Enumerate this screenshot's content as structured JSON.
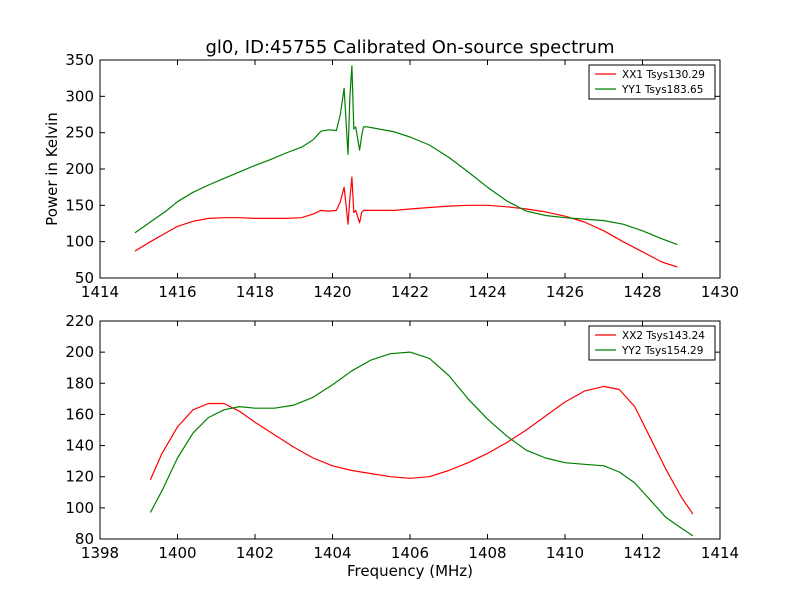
{
  "figure": {
    "title": "gl0, ID:45755 Calibrated On-source spectrum"
  },
  "colors": {
    "xx": "#ff0000",
    "yy": "#008000",
    "axes": "#000000",
    "background": "#ffffff"
  },
  "chart_data": [
    {
      "type": "line",
      "title": "gl0, ID:45755 Calibrated On-source spectrum",
      "xlabel": "",
      "ylabel": "Power in Kelvin",
      "xlim": [
        1414,
        1430
      ],
      "ylim": [
        50,
        350
      ],
      "xticks": [
        "1414",
        "1416",
        "1418",
        "1420",
        "1422",
        "1424",
        "1426",
        "1428",
        "1430"
      ],
      "yticks": [
        "50",
        "100",
        "150",
        "200",
        "250",
        "300",
        "350"
      ],
      "grid": false,
      "legend_position": "top-right",
      "series": [
        {
          "name": "XX1 Tsys130.29",
          "color": "#ff0000",
          "x": [
            1414.9,
            1415.3,
            1415.7,
            1416.0,
            1416.4,
            1416.8,
            1417.2,
            1417.6,
            1418.0,
            1418.4,
            1418.8,
            1419.2,
            1419.5,
            1419.7,
            1419.9,
            1420.1,
            1420.2,
            1420.3,
            1420.35,
            1420.4,
            1420.45,
            1420.5,
            1420.55,
            1420.6,
            1420.7,
            1420.75,
            1420.8,
            1420.9,
            1421.2,
            1421.6,
            1422.0,
            1422.5,
            1423.0,
            1423.5,
            1424.0,
            1424.5,
            1425.0,
            1425.5,
            1426.0,
            1426.5,
            1427.0,
            1427.5,
            1428.0,
            1428.5,
            1428.9
          ],
          "values": [
            87,
            100,
            112,
            121,
            128,
            132,
            133,
            133,
            132,
            132,
            132,
            133,
            138,
            143,
            142,
            143,
            155,
            175,
            150,
            124,
            160,
            189,
            140,
            143,
            126,
            140,
            143,
            143,
            143,
            143,
            145,
            147,
            149,
            150,
            150,
            148,
            145,
            141,
            135,
            127,
            115,
            100,
            86,
            72,
            65
          ]
        },
        {
          "name": "YY1 Tsys183.65",
          "color": "#008000",
          "x": [
            1414.9,
            1415.3,
            1415.7,
            1416.0,
            1416.4,
            1416.8,
            1417.2,
            1417.6,
            1418.0,
            1418.4,
            1418.8,
            1419.2,
            1419.5,
            1419.7,
            1419.9,
            1420.1,
            1420.2,
            1420.3,
            1420.35,
            1420.4,
            1420.45,
            1420.5,
            1420.55,
            1420.6,
            1420.7,
            1420.75,
            1420.8,
            1420.9,
            1421.2,
            1421.6,
            1422.0,
            1422.5,
            1423.0,
            1423.5,
            1424.0,
            1424.5,
            1425.0,
            1425.5,
            1426.0,
            1426.5,
            1427.0,
            1427.5,
            1428.0,
            1428.5,
            1428.9
          ],
          "values": [
            112,
            127,
            142,
            155,
            168,
            178,
            187,
            196,
            205,
            213,
            222,
            230,
            240,
            252,
            254,
            253,
            275,
            311,
            265,
            220,
            300,
            342,
            255,
            258,
            226,
            245,
            258,
            258,
            255,
            251,
            244,
            233,
            216,
            196,
            175,
            156,
            142,
            136,
            133,
            131,
            129,
            124,
            115,
            104,
            96
          ]
        }
      ]
    },
    {
      "type": "line",
      "title": "",
      "xlabel": "Frequency (MHz)",
      "ylabel": "",
      "xlim": [
        1398,
        1414
      ],
      "ylim": [
        80,
        220
      ],
      "xticks": [
        "1398",
        "1400",
        "1402",
        "1404",
        "1406",
        "1408",
        "1410",
        "1412",
        "1414"
      ],
      "yticks": [
        "80",
        "100",
        "120",
        "140",
        "160",
        "180",
        "200",
        "220"
      ],
      "grid": false,
      "legend_position": "top-right",
      "series": [
        {
          "name": "XX2 Tsys143.24",
          "color": "#ff0000",
          "x": [
            1399.3,
            1399.6,
            1400.0,
            1400.4,
            1400.8,
            1401.2,
            1401.6,
            1402.0,
            1402.5,
            1403.0,
            1403.5,
            1404.0,
            1404.5,
            1405.0,
            1405.5,
            1406.0,
            1406.5,
            1407.0,
            1407.5,
            1408.0,
            1408.5,
            1409.0,
            1409.5,
            1410.0,
            1410.5,
            1411.0,
            1411.4,
            1411.8,
            1412.2,
            1412.6,
            1413.0,
            1413.3
          ],
          "values": [
            118,
            135,
            152,
            163,
            167,
            167,
            162,
            155,
            147,
            139,
            132,
            127,
            124,
            122,
            120,
            119,
            120,
            124,
            129,
            135,
            142,
            150,
            159,
            168,
            175,
            178,
            176,
            165,
            145,
            125,
            107,
            96
          ]
        },
        {
          "name": "YY2 Tsys154.29",
          "color": "#008000",
          "x": [
            1399.3,
            1399.6,
            1400.0,
            1400.4,
            1400.8,
            1401.2,
            1401.6,
            1402.0,
            1402.5,
            1403.0,
            1403.5,
            1404.0,
            1404.5,
            1405.0,
            1405.5,
            1406.0,
            1406.5,
            1407.0,
            1407.5,
            1408.0,
            1408.5,
            1409.0,
            1409.5,
            1410.0,
            1410.5,
            1411.0,
            1411.4,
            1411.8,
            1412.2,
            1412.6,
            1413.0,
            1413.3
          ],
          "values": [
            97,
            111,
            132,
            148,
            158,
            163,
            165,
            164,
            164,
            166,
            171,
            179,
            188,
            195,
            199,
            200,
            196,
            185,
            170,
            157,
            146,
            137,
            132,
            129,
            128,
            127,
            123,
            116,
            105,
            94,
            87,
            82
          ]
        }
      ]
    }
  ]
}
